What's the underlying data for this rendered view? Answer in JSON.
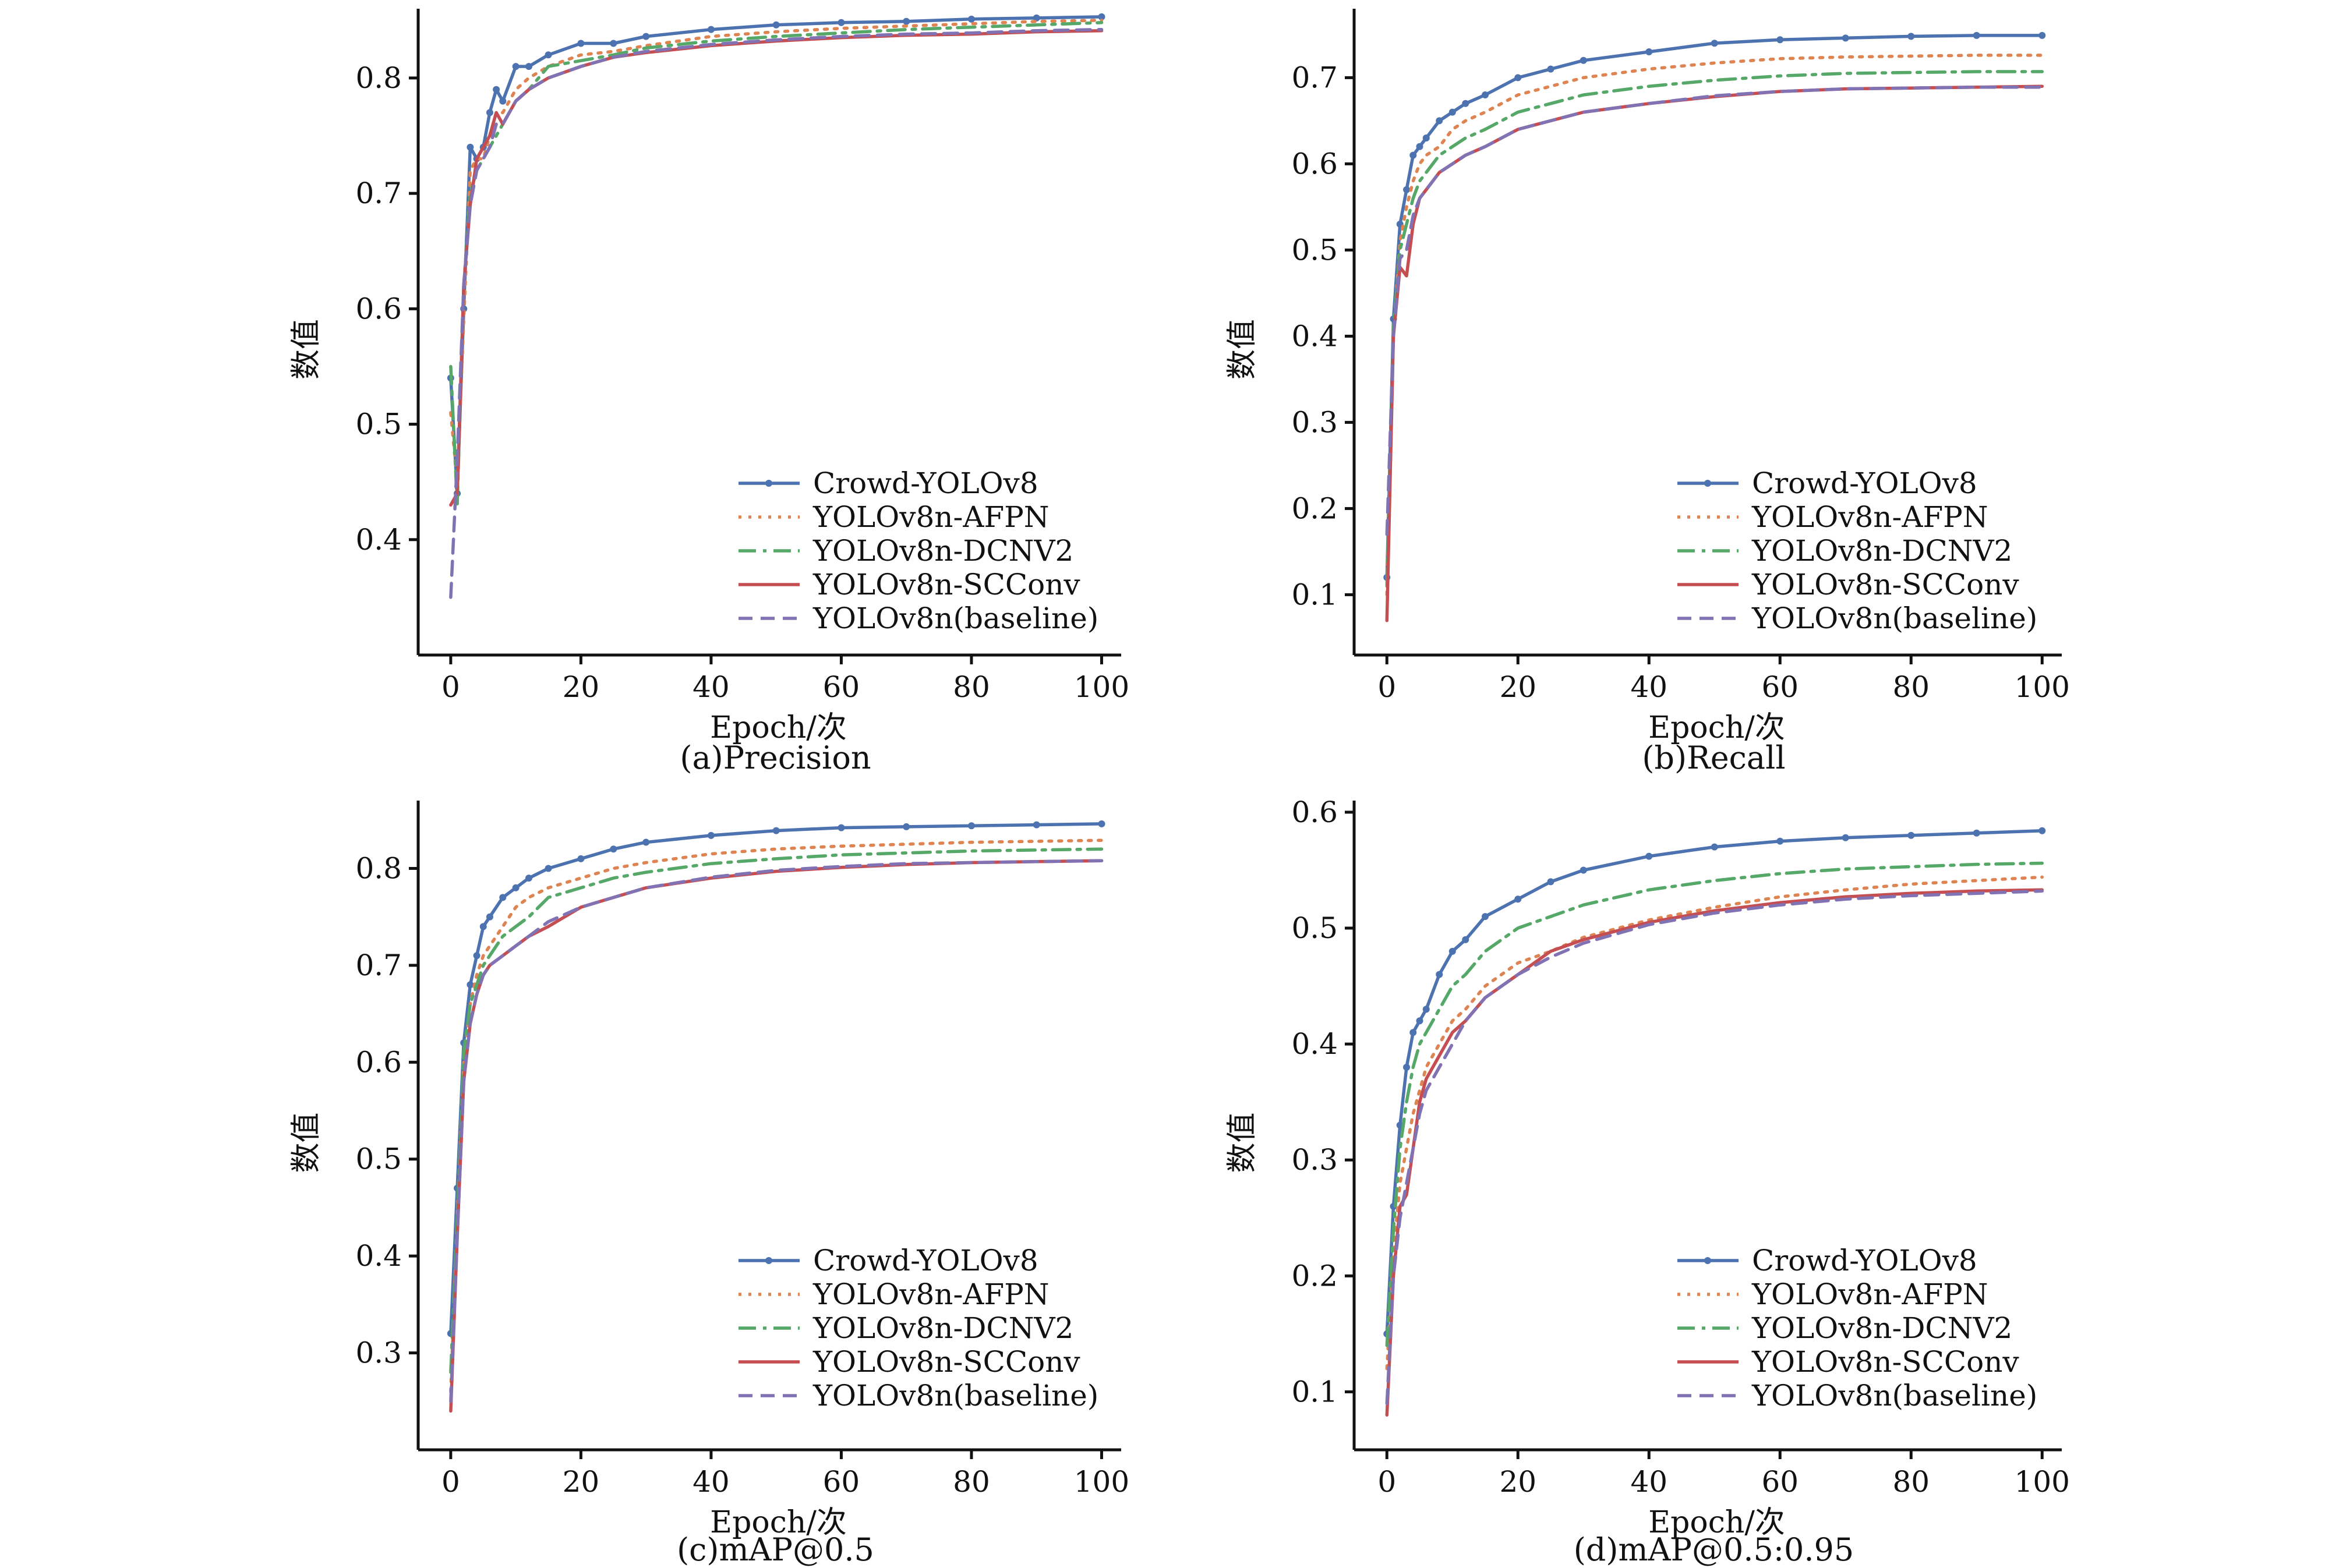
{
  "chart_data": [
    {
      "type": "line",
      "caption": "(a)Precision",
      "xlabel": "Epoch/次",
      "ylabel": "数值",
      "xlim": [
        -5,
        103
      ],
      "ylim": [
        0.3,
        0.86
      ],
      "xticks": [
        0,
        20,
        40,
        60,
        80,
        100
      ],
      "yticks": [
        0.4,
        0.5,
        0.6,
        0.7,
        0.8
      ],
      "grid": false,
      "legend_position": "bottom-right",
      "x": [
        0,
        1,
        2,
        3,
        4,
        5,
        6,
        7,
        8,
        10,
        12,
        15,
        20,
        25,
        30,
        40,
        50,
        60,
        70,
        80,
        90,
        100
      ],
      "series": [
        {
          "name": "Crowd-YOLOv8",
          "color": "#4c72b0",
          "style": "solid-marker",
          "values": [
            0.54,
            0.44,
            0.6,
            0.74,
            0.73,
            0.74,
            0.77,
            0.79,
            0.78,
            0.81,
            0.81,
            0.82,
            0.83,
            0.83,
            0.836,
            0.842,
            0.846,
            0.848,
            0.849,
            0.851,
            0.852,
            0.853
          ]
        },
        {
          "name": "YOLOv8n-AFPN",
          "color": "#dd8452",
          "style": "dotted",
          "values": [
            0.51,
            0.45,
            0.59,
            0.72,
            0.73,
            0.73,
            0.75,
            0.77,
            0.77,
            0.79,
            0.8,
            0.81,
            0.82,
            0.823,
            0.828,
            0.836,
            0.84,
            0.843,
            0.845,
            0.847,
            0.849,
            0.85
          ]
        },
        {
          "name": "YOLOv8n-DCNV2",
          "color": "#55a868",
          "style": "dash-dot",
          "values": [
            0.55,
            0.43,
            0.62,
            0.7,
            0.72,
            0.73,
            0.74,
            0.75,
            0.76,
            0.78,
            0.79,
            0.81,
            0.815,
            0.82,
            0.826,
            0.832,
            0.836,
            0.839,
            0.842,
            0.844,
            0.846,
            0.848
          ]
        },
        {
          "name": "YOLOv8n-SCConv",
          "color": "#c44e52",
          "style": "solid",
          "values": [
            0.43,
            0.44,
            0.62,
            0.69,
            0.73,
            0.74,
            0.75,
            0.77,
            0.76,
            0.78,
            0.79,
            0.8,
            0.81,
            0.818,
            0.822,
            0.828,
            0.832,
            0.835,
            0.837,
            0.838,
            0.84,
            0.841
          ]
        },
        {
          "name": "YOLOv8n(baseline)",
          "color": "#8172b3",
          "style": "dashed",
          "values": [
            0.35,
            0.47,
            0.62,
            0.69,
            0.72,
            0.73,
            0.74,
            0.76,
            0.76,
            0.78,
            0.79,
            0.8,
            0.81,
            0.818,
            0.823,
            0.829,
            0.833,
            0.836,
            0.838,
            0.839,
            0.841,
            0.842
          ]
        }
      ]
    },
    {
      "type": "line",
      "caption": "(b)Recall",
      "xlabel": "Epoch/次",
      "ylabel": "数值",
      "xlim": [
        -5,
        103
      ],
      "ylim": [
        0.03,
        0.78
      ],
      "xticks": [
        0,
        20,
        40,
        60,
        80,
        100
      ],
      "yticks": [
        0.1,
        0.2,
        0.3,
        0.4,
        0.5,
        0.6,
        0.7
      ],
      "grid": false,
      "legend_position": "bottom-right",
      "x": [
        0,
        1,
        2,
        3,
        4,
        5,
        6,
        8,
        10,
        12,
        15,
        20,
        25,
        30,
        40,
        50,
        60,
        70,
        80,
        90,
        100
      ],
      "series": [
        {
          "name": "Crowd-YOLOv8",
          "color": "#4c72b0",
          "style": "solid-marker",
          "values": [
            0.12,
            0.42,
            0.53,
            0.57,
            0.61,
            0.62,
            0.63,
            0.65,
            0.66,
            0.67,
            0.68,
            0.7,
            0.71,
            0.72,
            0.73,
            0.74,
            0.744,
            0.746,
            0.748,
            0.749,
            0.749
          ]
        },
        {
          "name": "YOLOv8n-AFPN",
          "color": "#dd8452",
          "style": "dotted",
          "values": [
            0.1,
            0.4,
            0.51,
            0.55,
            0.58,
            0.6,
            0.61,
            0.62,
            0.64,
            0.65,
            0.66,
            0.68,
            0.69,
            0.7,
            0.71,
            0.717,
            0.722,
            0.724,
            0.725,
            0.726,
            0.726
          ]
        },
        {
          "name": "YOLOv8n-DCNV2",
          "color": "#55a868",
          "style": "dash-dot",
          "values": [
            0.11,
            0.41,
            0.5,
            0.53,
            0.56,
            0.58,
            0.59,
            0.61,
            0.62,
            0.63,
            0.64,
            0.66,
            0.67,
            0.68,
            0.69,
            0.697,
            0.702,
            0.705,
            0.706,
            0.707,
            0.707
          ]
        },
        {
          "name": "YOLOv8n-SCConv",
          "color": "#c44e52",
          "style": "solid",
          "values": [
            0.07,
            0.4,
            0.48,
            0.47,
            0.53,
            0.56,
            0.57,
            0.59,
            0.6,
            0.61,
            0.62,
            0.64,
            0.65,
            0.66,
            0.67,
            0.678,
            0.684,
            0.687,
            0.688,
            0.689,
            0.69
          ]
        },
        {
          "name": "YOLOv8n(baseline)",
          "color": "#8172b3",
          "style": "dashed",
          "values": [
            0.17,
            0.4,
            0.49,
            0.5,
            0.54,
            0.56,
            0.57,
            0.59,
            0.6,
            0.61,
            0.62,
            0.64,
            0.65,
            0.66,
            0.67,
            0.679,
            0.684,
            0.687,
            0.688,
            0.689,
            0.689
          ]
        }
      ]
    },
    {
      "type": "line",
      "caption": "(c)mAP@0.5",
      "xlabel": "Epoch/次",
      "ylabel": "数值",
      "xlim": [
        -5,
        103
      ],
      "ylim": [
        0.2,
        0.87
      ],
      "xticks": [
        0,
        20,
        40,
        60,
        80,
        100
      ],
      "yticks": [
        0.3,
        0.4,
        0.5,
        0.6,
        0.7,
        0.8
      ],
      "grid": false,
      "legend_position": "bottom-right",
      "x": [
        0,
        1,
        2,
        3,
        4,
        5,
        6,
        8,
        10,
        12,
        15,
        20,
        25,
        30,
        40,
        50,
        60,
        70,
        80,
        90,
        100
      ],
      "series": [
        {
          "name": "Crowd-YOLOv8",
          "color": "#4c72b0",
          "style": "solid-marker",
          "values": [
            0.32,
            0.47,
            0.62,
            0.68,
            0.71,
            0.74,
            0.75,
            0.77,
            0.78,
            0.79,
            0.8,
            0.81,
            0.82,
            0.827,
            0.834,
            0.839,
            0.842,
            0.843,
            0.844,
            0.845,
            0.846
          ]
        },
        {
          "name": "YOLOv8n-AFPN",
          "color": "#dd8452",
          "style": "dotted",
          "values": [
            0.26,
            0.44,
            0.6,
            0.66,
            0.69,
            0.71,
            0.72,
            0.74,
            0.76,
            0.77,
            0.78,
            0.79,
            0.8,
            0.806,
            0.815,
            0.82,
            0.823,
            0.825,
            0.827,
            0.828,
            0.829
          ]
        },
        {
          "name": "YOLOv8n-DCNV2",
          "color": "#55a868",
          "style": "dash-dot",
          "values": [
            0.28,
            0.44,
            0.61,
            0.66,
            0.68,
            0.7,
            0.71,
            0.73,
            0.74,
            0.75,
            0.77,
            0.78,
            0.79,
            0.796,
            0.805,
            0.81,
            0.814,
            0.816,
            0.818,
            0.819,
            0.82
          ]
        },
        {
          "name": "YOLOv8n-SCConv",
          "color": "#c44e52",
          "style": "solid",
          "values": [
            0.24,
            0.42,
            0.58,
            0.64,
            0.67,
            0.69,
            0.7,
            0.71,
            0.72,
            0.73,
            0.74,
            0.76,
            0.77,
            0.78,
            0.79,
            0.797,
            0.801,
            0.804,
            0.806,
            0.807,
            0.808
          ]
        },
        {
          "name": "YOLOv8n(baseline)",
          "color": "#8172b3",
          "style": "dashed",
          "values": [
            0.25,
            0.42,
            0.58,
            0.64,
            0.67,
            0.69,
            0.7,
            0.71,
            0.72,
            0.73,
            0.745,
            0.76,
            0.77,
            0.78,
            0.791,
            0.798,
            0.802,
            0.805,
            0.806,
            0.807,
            0.808
          ]
        }
      ]
    },
    {
      "type": "line",
      "caption": "(d)mAP@0.5:0.95",
      "xlabel": "Epoch/次",
      "ylabel": "数值",
      "xlim": [
        -5,
        103
      ],
      "ylim": [
        0.05,
        0.61
      ],
      "xticks": [
        0,
        20,
        40,
        60,
        80,
        100
      ],
      "yticks": [
        0.1,
        0.2,
        0.3,
        0.4,
        0.5,
        0.6
      ],
      "grid": false,
      "legend_position": "bottom-right",
      "x": [
        0,
        1,
        2,
        3,
        4,
        5,
        6,
        8,
        10,
        12,
        15,
        20,
        25,
        30,
        40,
        50,
        60,
        70,
        80,
        90,
        100
      ],
      "series": [
        {
          "name": "Crowd-YOLOv8",
          "color": "#4c72b0",
          "style": "solid-marker",
          "values": [
            0.15,
            0.26,
            0.33,
            0.38,
            0.41,
            0.42,
            0.43,
            0.46,
            0.48,
            0.49,
            0.51,
            0.525,
            0.54,
            0.55,
            0.562,
            0.57,
            0.575,
            0.578,
            0.58,
            0.582,
            0.584
          ]
        },
        {
          "name": "YOLOv8n-AFPN",
          "color": "#dd8452",
          "style": "dotted",
          "values": [
            0.12,
            0.22,
            0.28,
            0.31,
            0.34,
            0.36,
            0.38,
            0.4,
            0.42,
            0.43,
            0.45,
            0.47,
            0.48,
            0.492,
            0.507,
            0.518,
            0.527,
            0.533,
            0.538,
            0.541,
            0.544
          ]
        },
        {
          "name": "YOLOv8n-DCNV2",
          "color": "#55a868",
          "style": "dash-dot",
          "values": [
            0.14,
            0.24,
            0.31,
            0.35,
            0.38,
            0.4,
            0.41,
            0.43,
            0.45,
            0.46,
            0.48,
            0.5,
            0.51,
            0.52,
            0.533,
            0.541,
            0.547,
            0.551,
            0.553,
            0.555,
            0.556
          ]
        },
        {
          "name": "YOLOv8n-SCConv",
          "color": "#c44e52",
          "style": "solid",
          "values": [
            0.08,
            0.2,
            0.26,
            0.27,
            0.31,
            0.35,
            0.37,
            0.39,
            0.41,
            0.42,
            0.44,
            0.46,
            0.48,
            0.49,
            0.505,
            0.515,
            0.522,
            0.527,
            0.53,
            0.532,
            0.533
          ]
        },
        {
          "name": "YOLOv8n(baseline)",
          "color": "#8172b3",
          "style": "dashed",
          "values": [
            0.09,
            0.2,
            0.25,
            0.28,
            0.31,
            0.34,
            0.36,
            0.38,
            0.4,
            0.42,
            0.44,
            0.46,
            0.475,
            0.487,
            0.503,
            0.513,
            0.52,
            0.525,
            0.528,
            0.53,
            0.532
          ]
        }
      ]
    }
  ]
}
